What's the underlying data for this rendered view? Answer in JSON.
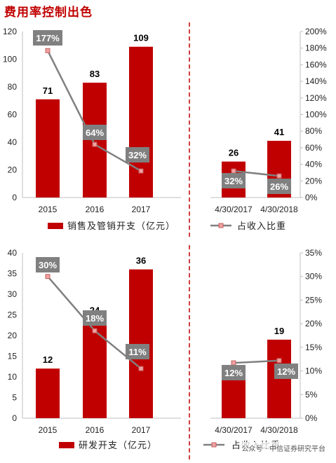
{
  "page_title": "费用率控制出色",
  "watermark": "公众号 · 中信证券研究平台",
  "colors": {
    "bar": "#c00000",
    "line": "#808080",
    "marker_fill": "#f2a0a0",
    "divider": "#c00000",
    "badge": "#808080"
  },
  "chart_data": [
    {
      "type": "bar",
      "categories": [
        "2015",
        "2016",
        "2017",
        "4/30/2017",
        "4/30/2018"
      ],
      "values": [
        71,
        83,
        109,
        26,
        41
      ],
      "value_labels": [
        "71",
        "83",
        "109",
        "26",
        "41"
      ],
      "ylim": [
        0,
        120
      ],
      "yticks": [
        "0",
        "20",
        "40",
        "60",
        "80",
        "100",
        "120"
      ],
      "y2lim": [
        0,
        2.0
      ],
      "y2ticks": [
        "0%",
        "20%",
        "40%",
        "60%",
        "80%",
        "100%",
        "120%",
        "140%",
        "160%",
        "180%",
        "200%"
      ],
      "series": [
        {
          "name": "销售及管销开支（亿元）",
          "type": "bar",
          "values": [
            71,
            83,
            109,
            26,
            41
          ]
        },
        {
          "name": "占收入比重",
          "type": "line",
          "axis": "secondary",
          "values": [
            1.77,
            0.64,
            0.32,
            0.32,
            0.26
          ]
        }
      ],
      "line_labels": [
        "177%",
        "64%",
        "32%",
        "32%",
        "26%"
      ],
      "grid": false,
      "legend": "bottom"
    },
    {
      "type": "bar",
      "categories": [
        "2015",
        "2016",
        "2017",
        "4/30/2017",
        "4/30/2018"
      ],
      "values": [
        12,
        24,
        36,
        9.5,
        19
      ],
      "value_labels": [
        "12",
        "24",
        "36",
        "",
        "19"
      ],
      "ylim": [
        0,
        40
      ],
      "yticks": [
        "0",
        "5",
        "10",
        "15",
        "20",
        "25",
        "30",
        "35",
        "40"
      ],
      "y2lim": [
        0,
        0.35
      ],
      "y2ticks": [
        "0%",
        "5%",
        "10%",
        "15%",
        "20%",
        "25%",
        "30%",
        "35%"
      ],
      "series": [
        {
          "name": "研发开支（亿元）",
          "type": "bar",
          "values": [
            12,
            24,
            36,
            9.5,
            19
          ]
        },
        {
          "name": "占收入比重",
          "type": "line",
          "axis": "secondary",
          "values": [
            0.3,
            0.185,
            0.105,
            0.117,
            0.122
          ]
        }
      ],
      "line_labels": [
        "30%",
        "18%",
        "11%",
        "12%",
        "12%"
      ],
      "grid": false,
      "legend": "bottom"
    }
  ]
}
